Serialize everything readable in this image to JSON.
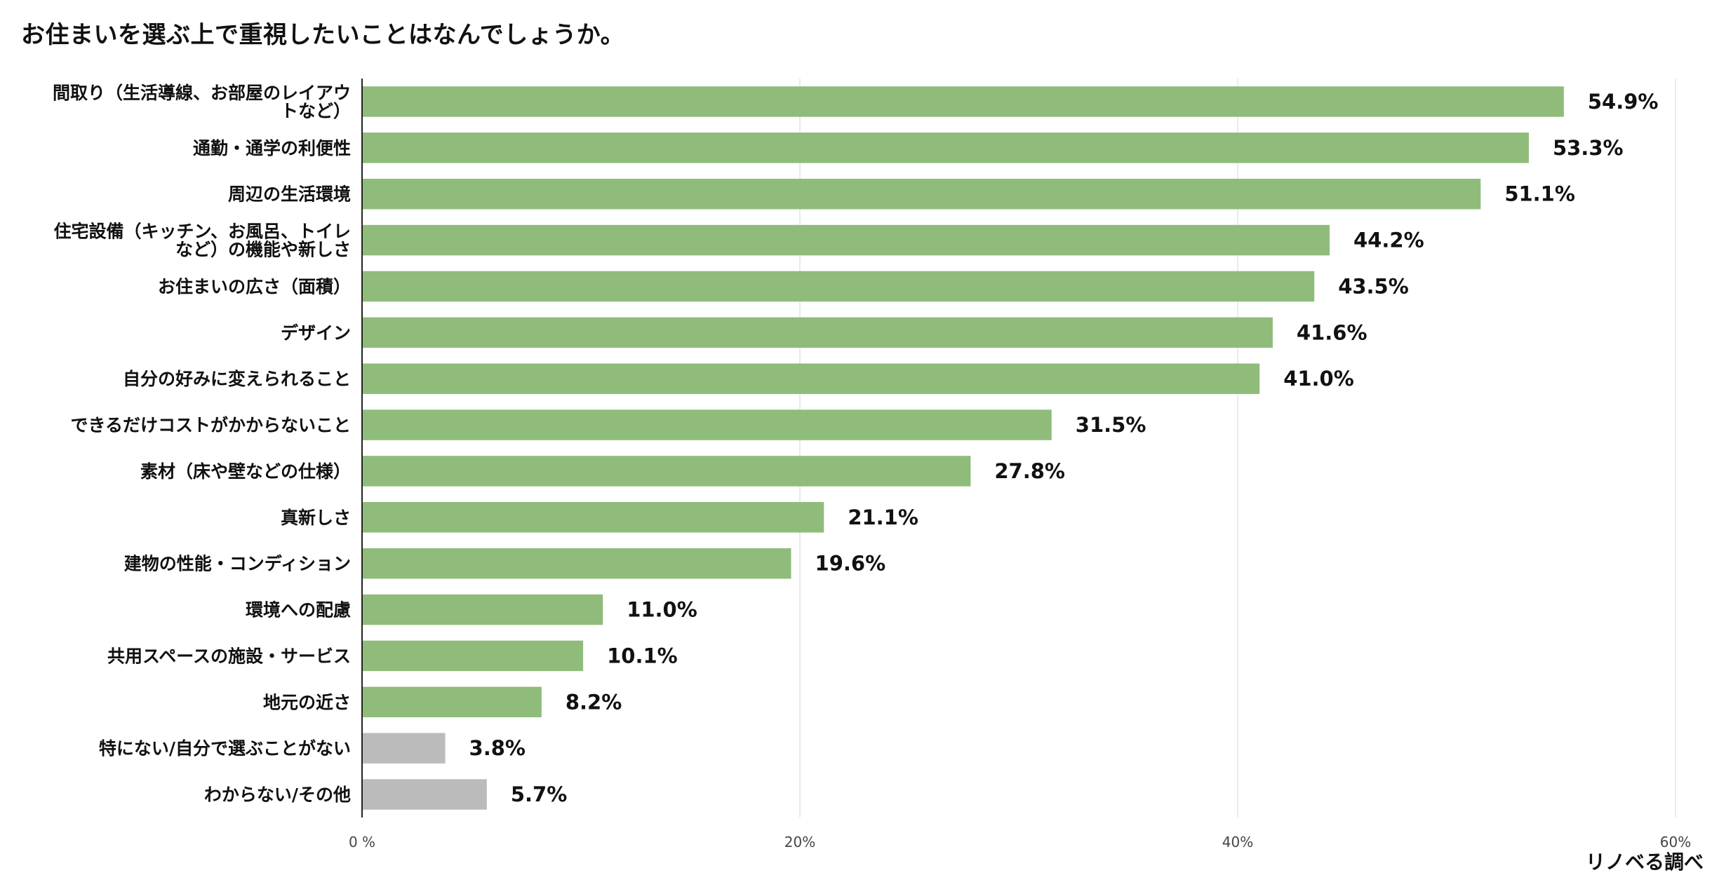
{
  "chart_data": {
    "type": "bar",
    "orientation": "horizontal",
    "title": "お住まいを選ぶ上で重視したいことはなんでしょうか。",
    "categories": [
      "間取り（生活導線、お部屋のレイアウトなど）",
      "通勤・通学の利便性",
      "周辺の生活環境",
      "住宅設備（キッチン、お風呂、トイレなど）の機能や新しさ",
      "お住まいの広さ（面積）",
      "デザイン",
      "自分の好みに変えられること",
      "できるだけコストがかからないこと",
      "素材（床や壁などの仕様）",
      "真新しさ",
      "建物の性能・コンディション",
      "環境への配慮",
      "共用スペースの施設・サービス",
      "地元の近さ",
      "特にない/自分で選ぶことがない",
      "わからない/その他"
    ],
    "category_label_lines": [
      [
        "間取り（生活導線、お部屋のレイアウ",
        "トなど）"
      ],
      [
        "通勤・通学の利便性"
      ],
      [
        "周辺の生活環境"
      ],
      [
        "住宅設備（キッチン、お風呂、トイレ",
        "など）の機能や新しさ"
      ],
      [
        "お住まいの広さ（面積）"
      ],
      [
        "デザイン"
      ],
      [
        "自分の好みに変えられること"
      ],
      [
        "できるだけコストがかからないこと"
      ],
      [
        "素材（床や壁などの仕様）"
      ],
      [
        "真新しさ"
      ],
      [
        "建物の性能・コンディション"
      ],
      [
        "環境への配慮"
      ],
      [
        "共用スペースの施設・サービス"
      ],
      [
        "地元の近さ"
      ],
      [
        "特にない/自分で選ぶことがない"
      ],
      [
        "わからない/その他"
      ]
    ],
    "values": [
      54.9,
      53.3,
      51.1,
      44.2,
      43.5,
      41.6,
      41.0,
      31.5,
      27.8,
      21.1,
      19.6,
      11.0,
      10.1,
      8.2,
      3.8,
      5.7
    ],
    "value_labels": [
      "54.9%",
      "53.3%",
      "51.1%",
      "44.2%",
      "43.5%",
      "41.6%",
      "41.0%",
      "31.5%",
      "27.8%",
      "21.1%",
      "19.6%",
      "11.0%",
      "10.1%",
      "8.2%",
      "3.8%",
      "5.7%"
    ],
    "bar_colors": [
      "#8fbc7a",
      "#8fbc7a",
      "#8fbc7a",
      "#8fbc7a",
      "#8fbc7a",
      "#8fbc7a",
      "#8fbc7a",
      "#8fbc7a",
      "#8fbc7a",
      "#8fbc7a",
      "#8fbc7a",
      "#8fbc7a",
      "#8fbc7a",
      "#8fbc7a",
      "#bbbbbb",
      "#bbbbbb"
    ],
    "xlim": [
      0,
      60
    ],
    "xticks": [
      0,
      20,
      40,
      60
    ],
    "xtick_labels": [
      "0 %",
      "20%",
      "40%",
      "60%"
    ],
    "grid": true,
    "xlabel": "",
    "ylabel": ""
  },
  "source_note": "リノベる調べ",
  "colors": {
    "bar_main": "#8fbc7a",
    "bar_other": "#bbbbbb",
    "gridline": "#e3e3e3",
    "axis": "#222222"
  }
}
